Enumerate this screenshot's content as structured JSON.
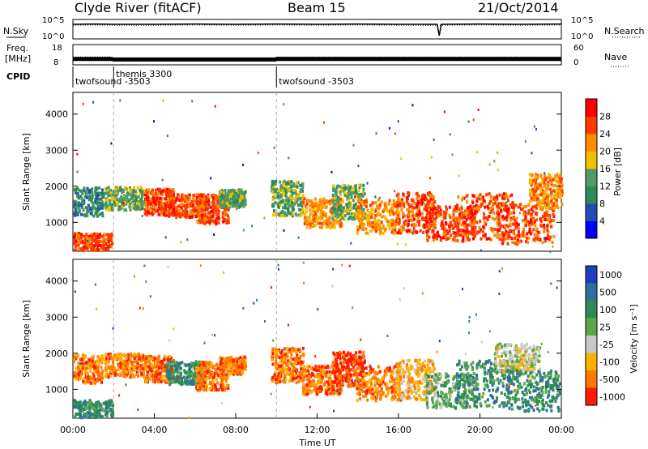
{
  "header": {
    "station": "Clyde River (fitACF)",
    "beam": "Beam 15",
    "date": "21/Oct/2014"
  },
  "chart_data": [
    {
      "type": "line",
      "panel": "noise",
      "left_label": "N.Sky",
      "right_label": "N.Search",
      "left_ticks": [
        "10^5",
        "10^0"
      ],
      "right_ticks": [
        "10^5",
        "10^0"
      ],
      "x": [
        0,
        1,
        2,
        4,
        6,
        8,
        10,
        12,
        14,
        16,
        17.9,
        18,
        18.1,
        20,
        22,
        24
      ],
      "n_sky": [
        4.0,
        4.1,
        4.0,
        4.0,
        4.1,
        4.0,
        4.1,
        4.0,
        4.1,
        4.0,
        4.0,
        0.5,
        4.0,
        4.1,
        4.0,
        4.1
      ],
      "n_search": [
        3.7,
        3.8,
        3.7,
        3.7,
        3.8,
        3.7,
        3.8,
        3.7,
        3.8,
        3.7,
        3.7,
        3.7,
        3.7,
        3.8,
        3.7,
        3.8
      ]
    },
    {
      "type": "line",
      "panel": "freq-nave",
      "left_label_top": "Freq.",
      "left_label_bottom": "[MHz]",
      "right_label": "Nave",
      "left_ticks": [
        "18",
        "8"
      ],
      "right_ticks": [
        "60",
        "0"
      ],
      "x": [
        0,
        1,
        1.9,
        2.0,
        4,
        6,
        8,
        9.95,
        10.0,
        12,
        14,
        16,
        18,
        20,
        22,
        24
      ],
      "freq": [
        10.5,
        10.5,
        10.5,
        10.2,
        10.2,
        10.2,
        10.2,
        10.2,
        10.5,
        10.5,
        10.5,
        10.5,
        10.5,
        10.5,
        10.5,
        10.5
      ],
      "nave": [
        22,
        22,
        22,
        15,
        15,
        15,
        15,
        15,
        22,
        22,
        22,
        22,
        22,
        22,
        22,
        22
      ]
    },
    {
      "type": "table",
      "panel": "cpid",
      "label": "CPID",
      "segments": [
        {
          "start": 0,
          "end": 2,
          "name": "twofsound -3503"
        },
        {
          "start": 2,
          "end": 10,
          "name": "themis 3300"
        },
        {
          "start": 10,
          "end": 24,
          "name": "twofsound -3503"
        }
      ]
    },
    {
      "type": "heatmap",
      "panel": "power",
      "ylabel": "Slant Range [km]",
      "xlim": [
        0,
        24
      ],
      "ylim": [
        200,
        4600
      ],
      "yticks": [
        1000,
        2000,
        3000,
        4000
      ],
      "colorbar_label": "Power [dB]",
      "colorbar_ticks": [
        4,
        8,
        12,
        16,
        20,
        24,
        28
      ],
      "colors": [
        "#0000ff",
        "#1f4fb5",
        "#2e8b57",
        "#4e9a6a",
        "#f0c000",
        "#ff8c00",
        "#ff3b00",
        "#ff0000"
      ],
      "blobs": [
        {
          "t": 0.5,
          "r": 1600,
          "dt": 1.2,
          "dr": 500,
          "v": 2
        },
        {
          "t": 0.8,
          "r": 500,
          "dt": 1.4,
          "dr": 300,
          "v": 6
        },
        {
          "t": 2.5,
          "r": 1700,
          "dt": 1.2,
          "dr": 400,
          "v": 3
        },
        {
          "t": 4.2,
          "r": 1600,
          "dt": 0.9,
          "dr": 450,
          "v": 6
        },
        {
          "t": 5.5,
          "r": 1500,
          "dt": 1.2,
          "dr": 400,
          "v": 6
        },
        {
          "t": 6.8,
          "r": 1400,
          "dt": 1.0,
          "dr": 500,
          "v": 6
        },
        {
          "t": 7.8,
          "r": 1700,
          "dt": 0.8,
          "dr": 300,
          "v": 3
        },
        {
          "t": 10.5,
          "r": 1700,
          "dt": 1.0,
          "dr": 600,
          "v": 3
        },
        {
          "t": 12.2,
          "r": 1300,
          "dt": 1.2,
          "dr": 500,
          "v": 5
        },
        {
          "t": 13.5,
          "r": 1600,
          "dt": 1.0,
          "dr": 600,
          "v": 3
        },
        {
          "t": 15.0,
          "r": 1200,
          "dt": 1.4,
          "dr": 600,
          "v": 5
        },
        {
          "t": 16.8,
          "r": 1300,
          "dt": 1.2,
          "dr": 700,
          "v": 6
        },
        {
          "t": 18.5,
          "r": 1000,
          "dt": 1.5,
          "dr": 600,
          "v": 6
        },
        {
          "t": 20.2,
          "r": 1200,
          "dt": 1.8,
          "dr": 800,
          "v": 6
        },
        {
          "t": 22.2,
          "r": 1000,
          "dt": 1.8,
          "dr": 700,
          "v": 6
        },
        {
          "t": 23.2,
          "r": 1900,
          "dt": 1.0,
          "dr": 600,
          "v": 5
        }
      ]
    },
    {
      "type": "heatmap",
      "panel": "velocity",
      "ylabel": "Slant Range [km]",
      "xlabel": "Time UT",
      "xlim": [
        0,
        24
      ],
      "ylim": [
        200,
        4600
      ],
      "yticks": [
        1000,
        2000,
        3000,
        4000
      ],
      "xticks": [
        "00:00",
        "04:00",
        "08:00",
        "12:00",
        "16:00",
        "20:00",
        "00:00"
      ],
      "colorbar_label": "Velocity [m s⁻¹]",
      "colorbar_ticks": [
        1000,
        500,
        100,
        25,
        -25,
        -100,
        -500,
        -1000
      ],
      "colors": [
        "#1f3fbf",
        "#2f6fa0",
        "#2e8b57",
        "#5aa84a",
        "#c8c8c8",
        "#ffb000",
        "#ff7a00",
        "#ff1a00"
      ],
      "blobs": [
        {
          "t": 0.5,
          "r": 1600,
          "dt": 1.2,
          "dr": 500,
          "v": 6
        },
        {
          "t": 0.8,
          "r": 500,
          "dt": 1.4,
          "dr": 300,
          "v": 2
        },
        {
          "t": 2.5,
          "r": 1700,
          "dt": 1.2,
          "dr": 400,
          "v": 6
        },
        {
          "t": 4.2,
          "r": 1600,
          "dt": 0.9,
          "dr": 450,
          "v": 6
        },
        {
          "t": 5.5,
          "r": 1500,
          "dt": 1.2,
          "dr": 400,
          "v": 2
        },
        {
          "t": 6.8,
          "r": 1400,
          "dt": 1.0,
          "dr": 500,
          "v": 6
        },
        {
          "t": 7.8,
          "r": 1700,
          "dt": 0.8,
          "dr": 300,
          "v": 6
        },
        {
          "t": 10.5,
          "r": 1700,
          "dt": 1.0,
          "dr": 600,
          "v": 6
        },
        {
          "t": 12.2,
          "r": 1300,
          "dt": 1.2,
          "dr": 500,
          "v": 6
        },
        {
          "t": 13.5,
          "r": 1600,
          "dt": 1.0,
          "dr": 600,
          "v": 7
        },
        {
          "t": 15.0,
          "r": 1200,
          "dt": 1.4,
          "dr": 600,
          "v": 6
        },
        {
          "t": 16.8,
          "r": 1300,
          "dt": 1.2,
          "dr": 700,
          "v": 5
        },
        {
          "t": 18.5,
          "r": 1000,
          "dt": 1.5,
          "dr": 600,
          "v": 3
        },
        {
          "t": 20.2,
          "r": 1200,
          "dt": 1.8,
          "dr": 800,
          "v": 2
        },
        {
          "t": 21.8,
          "r": 1900,
          "dt": 1.4,
          "dr": 500,
          "v": 4
        },
        {
          "t": 22.6,
          "r": 1000,
          "dt": 1.6,
          "dr": 700,
          "v": 2
        }
      ]
    }
  ]
}
